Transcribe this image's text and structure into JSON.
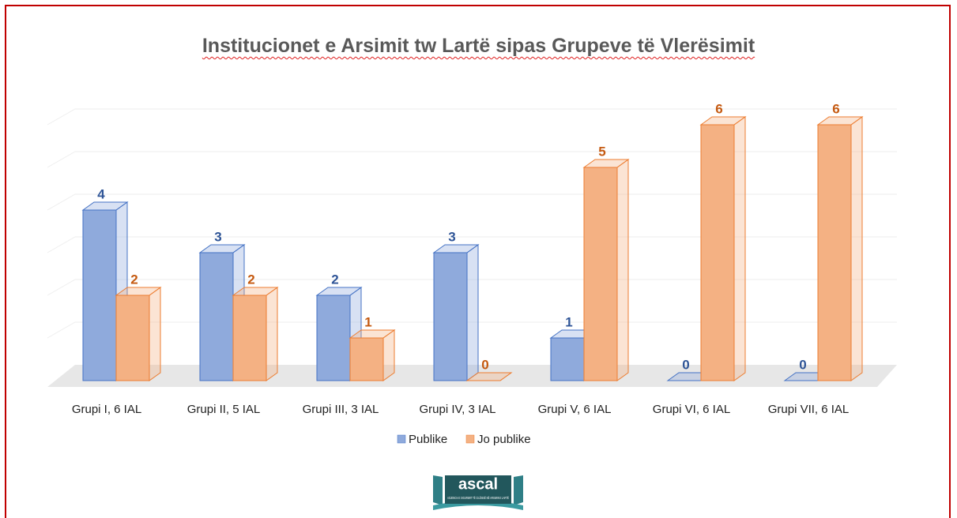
{
  "chart_data": {
    "type": "bar3d",
    "title": "Institucionet e Arsimit tw Lartë sipas Grupeve të Vlerësimit",
    "categories": [
      "Grupi I, 6 IAL",
      "Grupi II, 5 IAL",
      "Grupi III, 3 IAL",
      "Grupi IV, 3 IAL",
      "Grupi V, 6 IAL",
      "Grupi VI, 6 IAL",
      "Grupi VII, 6 IAL"
    ],
    "series": [
      {
        "name": "Publike",
        "color": "#8faadc",
        "values": [
          4,
          3,
          2,
          3,
          1,
          0,
          0
        ]
      },
      {
        "name": "Jo publike",
        "color": "#f4b183",
        "values": [
          2,
          2,
          1,
          0,
          5,
          6,
          6
        ]
      }
    ],
    "ylim": [
      0,
      6
    ],
    "yticks": [
      0,
      1,
      2,
      3,
      4,
      5,
      6
    ],
    "grid": true,
    "legend": "bottom"
  },
  "logo": {
    "name": "ascal",
    "subtitle": "AGJENCIA E SIGURIMIT TË CILËSISË NË ARSIMIN E LARTË"
  }
}
